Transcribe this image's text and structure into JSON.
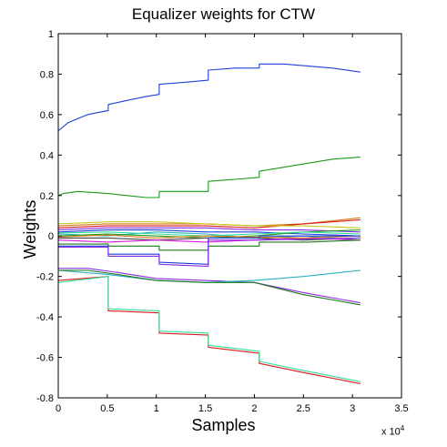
{
  "chart_data": {
    "type": "line",
    "title": "Equalizer weights for CTW",
    "xlabel": "Samples",
    "ylabel": "Weights",
    "x_multiplier": "x 10",
    "x_multiplier_exp": "4",
    "xlim": [
      0,
      3.5
    ],
    "ylim": [
      -0.8,
      1.0
    ],
    "xticks": [
      "0",
      "0.5",
      "1",
      "1.5",
      "2",
      "2.5",
      "3",
      "3.5"
    ],
    "yticks": [
      "-0.8",
      "-0.6",
      "-0.4",
      "-0.2",
      "0",
      "0.2",
      "0.4",
      "0.6",
      "0.8",
      "1"
    ],
    "grid": false,
    "series": [
      {
        "color": "#1f3fd8",
        "x": [
          0,
          0.1,
          0.2,
          0.3,
          0.4,
          0.51,
          0.51,
          0.7,
          0.9,
          1.03,
          1.03,
          1.3,
          1.53,
          1.53,
          1.8,
          2.05,
          2.05,
          2.3,
          2.55,
          2.8,
          3.08
        ],
        "y": [
          0.52,
          0.56,
          0.58,
          0.6,
          0.61,
          0.62,
          0.65,
          0.67,
          0.69,
          0.7,
          0.75,
          0.76,
          0.77,
          0.82,
          0.83,
          0.83,
          0.85,
          0.85,
          0.84,
          0.83,
          0.81
        ]
      },
      {
        "color": "#1a9a1a",
        "x": [
          0,
          0.05,
          0.2,
          0.51,
          0.7,
          0.9,
          1.03,
          1.03,
          1.3,
          1.53,
          1.53,
          1.8,
          2.05,
          2.05,
          2.3,
          2.55,
          2.8,
          3.08
        ],
        "y": [
          0.2,
          0.21,
          0.22,
          0.21,
          0.2,
          0.19,
          0.19,
          0.22,
          0.22,
          0.22,
          0.27,
          0.28,
          0.29,
          0.32,
          0.34,
          0.36,
          0.38,
          0.39
        ]
      },
      {
        "color": "#d81a1a",
        "x": [
          0,
          0.51,
          0.51,
          1.03,
          1.03,
          1.53,
          1.53,
          2.05,
          2.05,
          2.55,
          3.08
        ],
        "y": [
          -0.22,
          -0.2,
          -0.37,
          -0.38,
          -0.48,
          -0.49,
          -0.55,
          -0.58,
          -0.63,
          -0.68,
          -0.73
        ]
      },
      {
        "color": "#33dd99",
        "x": [
          0,
          0.51,
          0.51,
          1.03,
          1.03,
          1.53,
          1.53,
          2.05,
          2.05,
          2.55,
          3.08
        ],
        "y": [
          -0.23,
          -0.2,
          -0.36,
          -0.37,
          -0.47,
          -0.48,
          -0.54,
          -0.57,
          -0.62,
          -0.67,
          -0.72
        ]
      },
      {
        "color": "#8a2be2",
        "x": [
          0,
          0.3,
          0.6,
          1.0,
          1.5,
          2.0,
          2.5,
          3.08
        ],
        "y": [
          -0.16,
          -0.16,
          -0.18,
          -0.21,
          -0.22,
          -0.23,
          -0.28,
          -0.33
        ]
      },
      {
        "color": "#2ab0c0",
        "x": [
          0,
          0.5,
          1.0,
          1.5,
          2.0,
          2.5,
          3.08
        ],
        "y": [
          -0.17,
          -0.19,
          -0.22,
          -0.23,
          -0.22,
          -0.2,
          -0.17
        ]
      },
      {
        "color": "#1a7a1a",
        "x": [
          0,
          0.3,
          0.6,
          1.0,
          1.5,
          2.0,
          2.5,
          3.08
        ],
        "y": [
          -0.17,
          -0.17,
          -0.19,
          -0.22,
          -0.23,
          -0.23,
          -0.29,
          -0.34
        ]
      },
      {
        "color": "#d87a1a",
        "x": [
          0,
          0.5,
          1.0,
          1.5,
          2.0,
          2.5,
          3.08
        ],
        "y": [
          0.05,
          0.06,
          0.06,
          0.06,
          0.05,
          0.06,
          0.09
        ]
      },
      {
        "color": "#d81a1a",
        "x": [
          0,
          0.5,
          1.0,
          1.5,
          2.0,
          2.5,
          3.08
        ],
        "y": [
          0.04,
          0.05,
          0.05,
          0.05,
          0.04,
          0.06,
          0.08
        ]
      },
      {
        "color": "#c8c81a",
        "x": [
          0,
          0.5,
          1.0,
          1.5,
          2.0,
          2.5,
          3.08
        ],
        "y": [
          0.06,
          0.07,
          0.07,
          0.06,
          0.05,
          0.05,
          0.04
        ]
      },
      {
        "color": "#8a2be2",
        "x": [
          0,
          0.5,
          1.0,
          1.5,
          2.0,
          2.5,
          3.08
        ],
        "y": [
          0.03,
          0.04,
          0.04,
          0.04,
          0.03,
          0.03,
          0.02
        ]
      },
      {
        "color": "#1f3fd8",
        "x": [
          0,
          0.5,
          1.0,
          1.5,
          2.0,
          2.5,
          3.08
        ],
        "y": [
          0.02,
          0.03,
          0.03,
          0.02,
          0.02,
          0.01,
          0.0
        ]
      },
      {
        "color": "#2ab0c0",
        "x": [
          0,
          0.5,
          1.0,
          1.5,
          2.0,
          2.5,
          3.08
        ],
        "y": [
          0.01,
          0.0,
          0.02,
          0.01,
          -0.01,
          0.0,
          -0.02
        ]
      },
      {
        "color": "#1a9a1a",
        "x": [
          0,
          0.5,
          1.0,
          1.5,
          2.0,
          2.5,
          3.08
        ],
        "y": [
          0.0,
          0.01,
          0.0,
          -0.01,
          0.0,
          0.02,
          0.03
        ]
      },
      {
        "color": "#444444",
        "x": [
          0,
          0.5,
          1.0,
          1.5,
          2.0,
          2.5,
          3.08
        ],
        "y": [
          -0.01,
          -0.01,
          -0.02,
          -0.01,
          -0.01,
          -0.02,
          -0.01
        ]
      },
      {
        "color": "#d81ad8",
        "x": [
          0,
          0.5,
          1.0,
          1.5,
          2.0,
          2.5,
          3.08
        ],
        "y": [
          -0.02,
          -0.03,
          -0.02,
          -0.03,
          -0.02,
          -0.01,
          -0.02
        ]
      },
      {
        "color": "#33dd99",
        "x": [
          0,
          0.5,
          1.0,
          1.5,
          2.0,
          2.5,
          3.08
        ],
        "y": [
          0.015,
          0.02,
          0.01,
          0.0,
          0.01,
          0.02,
          0.01
        ]
      },
      {
        "color": "#d87a1a",
        "x": [
          0,
          0.5,
          1.0,
          1.5,
          2.0,
          2.5,
          3.08
        ],
        "y": [
          -0.005,
          0.005,
          -0.01,
          0.0,
          -0.005,
          -0.01,
          0.0
        ]
      },
      {
        "color": "#1a7a1a",
        "x": [
          0,
          0.51,
          0.51,
          1.03,
          1.03,
          1.53,
          1.53,
          2.05,
          2.05,
          2.55,
          3.08
        ],
        "y": [
          -0.04,
          -0.04,
          -0.05,
          -0.05,
          -0.07,
          -0.07,
          -0.05,
          -0.05,
          -0.03,
          -0.03,
          -0.02
        ]
      },
      {
        "color": "#1f3fd8",
        "x": [
          0,
          0.51,
          0.51,
          1.03,
          1.03,
          1.53,
          1.53,
          2.05,
          2.05,
          2.55,
          3.08
        ],
        "y": [
          -0.05,
          -0.05,
          -0.09,
          -0.09,
          -0.13,
          -0.14,
          -0.01,
          -0.01,
          0.0,
          0.0,
          0.0
        ]
      },
      {
        "color": "#8a2be2",
        "x": [
          0,
          0.51,
          0.51,
          1.03,
          1.03,
          1.53,
          1.53,
          2.05,
          3.08
        ],
        "y": [
          -0.055,
          -0.055,
          -0.1,
          -0.1,
          -0.14,
          -0.15,
          -0.02,
          -0.02,
          -0.01
        ]
      }
    ]
  }
}
